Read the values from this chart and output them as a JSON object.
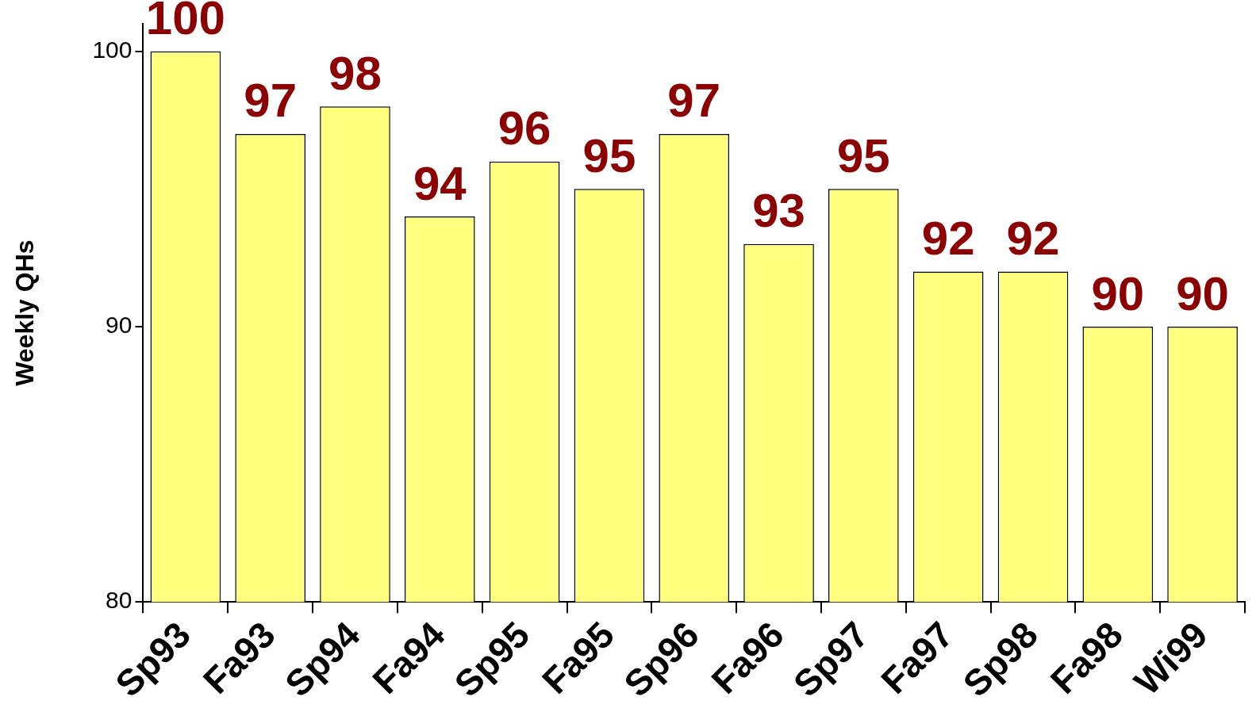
{
  "chart_data": {
    "type": "bar",
    "ylabel": "Weekly QHs",
    "categories": [
      "Sp93",
      "Fa93",
      "Sp94",
      "Fa94",
      "Sp95",
      "Fa95",
      "Sp96",
      "Fa96",
      "Sp97",
      "Fa97",
      "Sp98",
      "Fa98",
      "Wi99"
    ],
    "values": [
      100,
      97,
      98,
      94,
      96,
      95,
      97,
      93,
      95,
      92,
      92,
      90,
      90
    ],
    "color": "#ffff80",
    "ylim": [
      80,
      101
    ],
    "yticks": [
      80,
      90,
      100
    ],
    "grid": false,
    "legend": false,
    "data_labels": true
  }
}
